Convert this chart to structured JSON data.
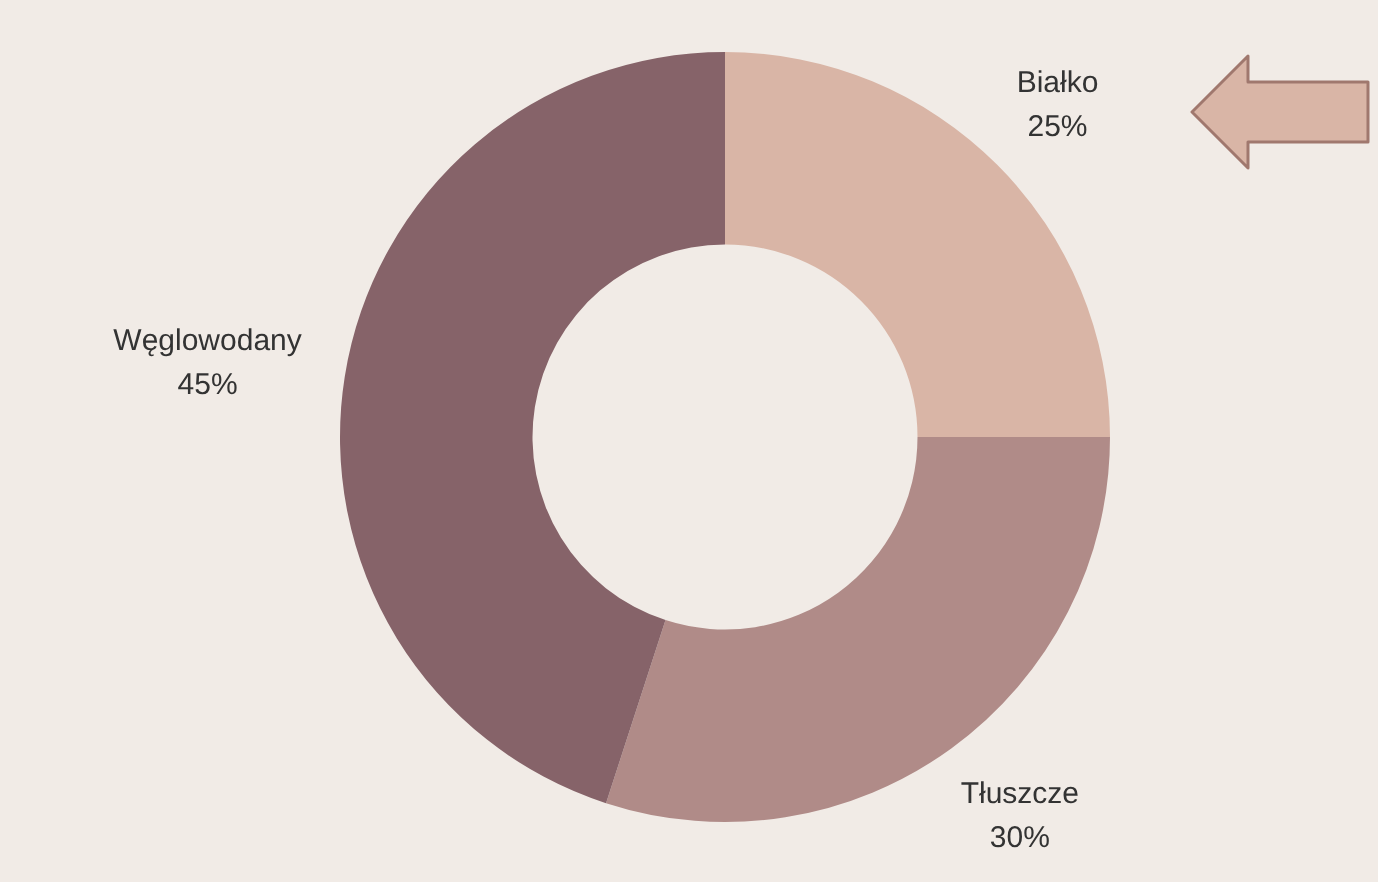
{
  "chart_data": {
    "type": "donut",
    "categories": [
      "Białko",
      "Tłuszcze",
      "Węglowodany"
    ],
    "values": [
      25,
      30,
      45
    ],
    "colors": [
      "#d9b5a6",
      "#b08b88",
      "#866369"
    ],
    "value_labels": [
      "25%",
      "30%",
      "45%"
    ],
    "legend": false
  }
}
